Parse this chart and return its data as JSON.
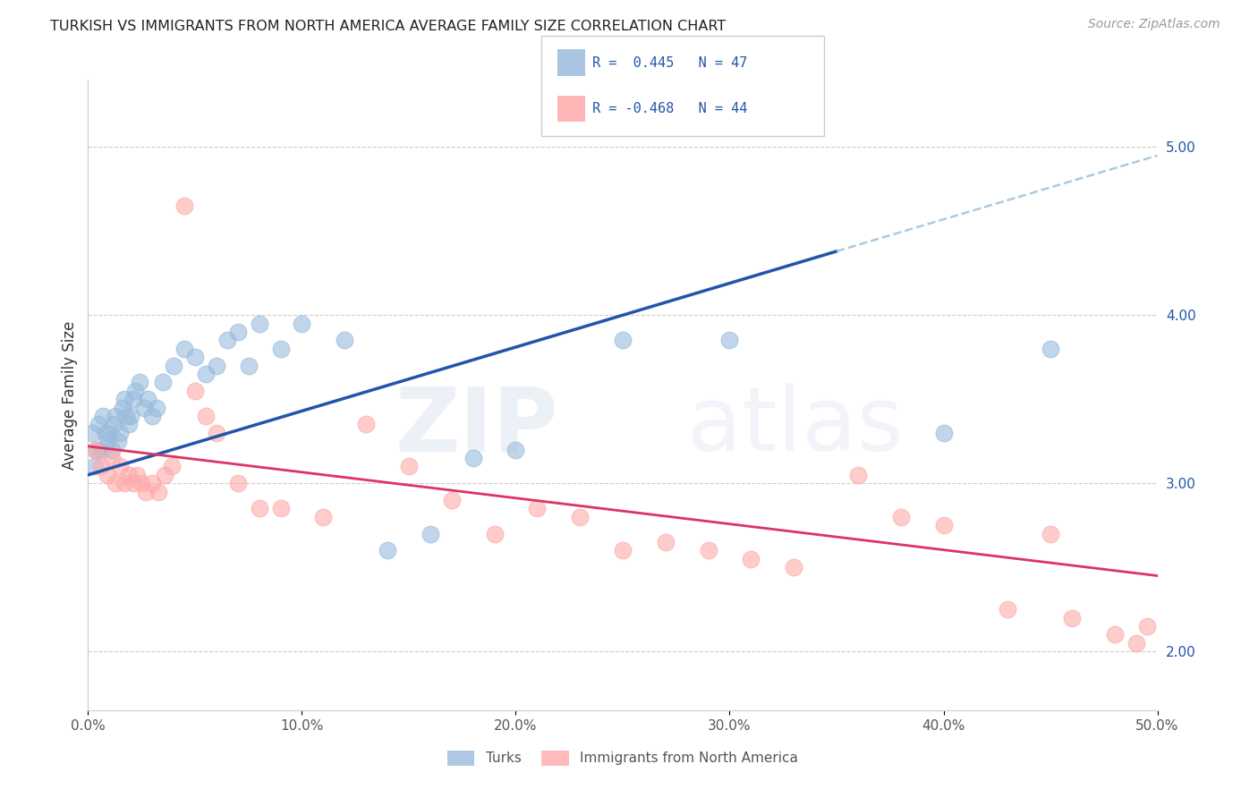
{
  "title": "TURKISH VS IMMIGRANTS FROM NORTH AMERICA AVERAGE FAMILY SIZE CORRELATION CHART",
  "source": "Source: ZipAtlas.com",
  "ylabel": "Average Family Size",
  "right_yticks": [
    2.0,
    3.0,
    4.0,
    5.0
  ],
  "legend_label_blue": "Turks",
  "legend_label_pink": "Immigrants from North America",
  "blue_color": "#99BBDD",
  "pink_color": "#FFAAAA",
  "trend_blue_color": "#2255AA",
  "trend_pink_color": "#DD3366",
  "trend_dash_color": "#AACCDD",
  "blue_r": "R =  0.445",
  "blue_n": "N = 47",
  "pink_r": "R = -0.468",
  "pink_n": "N = 44",
  "turks_x": [
    0.2,
    0.3,
    0.4,
    0.5,
    0.6,
    0.7,
    0.8,
    0.9,
    1.0,
    1.1,
    1.2,
    1.3,
    1.4,
    1.5,
    1.6,
    1.7,
    1.8,
    1.9,
    2.0,
    2.1,
    2.2,
    2.4,
    2.6,
    2.8,
    3.0,
    3.2,
    3.5,
    4.0,
    4.5,
    5.0,
    5.5,
    6.0,
    6.5,
    7.0,
    7.5,
    8.0,
    9.0,
    10.0,
    12.0,
    14.0,
    16.0,
    18.0,
    20.0,
    25.0,
    30.0,
    40.0,
    45.0
  ],
  "turks_y": [
    3.3,
    3.1,
    3.2,
    3.35,
    3.2,
    3.4,
    3.3,
    3.25,
    3.3,
    3.2,
    3.35,
    3.4,
    3.25,
    3.3,
    3.45,
    3.5,
    3.4,
    3.35,
    3.4,
    3.5,
    3.55,
    3.6,
    3.45,
    3.5,
    3.4,
    3.45,
    3.6,
    3.7,
    3.8,
    3.75,
    3.65,
    3.7,
    3.85,
    3.9,
    3.7,
    3.95,
    3.8,
    3.95,
    3.85,
    2.6,
    2.7,
    3.15,
    3.2,
    3.85,
    3.85,
    3.3,
    3.8
  ],
  "immigrants_x": [
    0.3,
    0.6,
    0.9,
    1.1,
    1.3,
    1.5,
    1.7,
    1.9,
    2.1,
    2.3,
    2.5,
    2.7,
    3.0,
    3.3,
    3.6,
    3.9,
    4.5,
    5.0,
    5.5,
    6.0,
    7.0,
    8.0,
    9.0,
    11.0,
    13.0,
    15.0,
    17.0,
    19.0,
    21.0,
    23.0,
    25.0,
    27.0,
    29.0,
    31.0,
    33.0,
    36.0,
    38.0,
    40.0,
    43.0,
    45.0,
    46.0,
    48.0,
    49.0,
    49.5
  ],
  "immigrants_y": [
    3.2,
    3.1,
    3.05,
    3.15,
    3.0,
    3.1,
    3.0,
    3.05,
    3.0,
    3.05,
    3.0,
    2.95,
    3.0,
    2.95,
    3.05,
    3.1,
    4.65,
    3.55,
    3.4,
    3.3,
    3.0,
    2.85,
    2.85,
    2.8,
    3.35,
    3.1,
    2.9,
    2.7,
    2.85,
    2.8,
    2.6,
    2.65,
    2.6,
    2.55,
    2.5,
    3.05,
    2.8,
    2.75,
    2.25,
    2.7,
    2.2,
    2.1,
    2.05,
    2.15
  ],
  "xlim": [
    0,
    50
  ],
  "ylim": [
    1.65,
    5.4
  ],
  "blue_line_x0": 0,
  "blue_line_y0": 3.05,
  "blue_line_x1": 50,
  "blue_line_y1": 4.95,
  "blue_solid_end_x": 35,
  "pink_line_x0": 0,
  "pink_line_y0": 3.22,
  "pink_line_x1": 50,
  "pink_line_y1": 2.45
}
